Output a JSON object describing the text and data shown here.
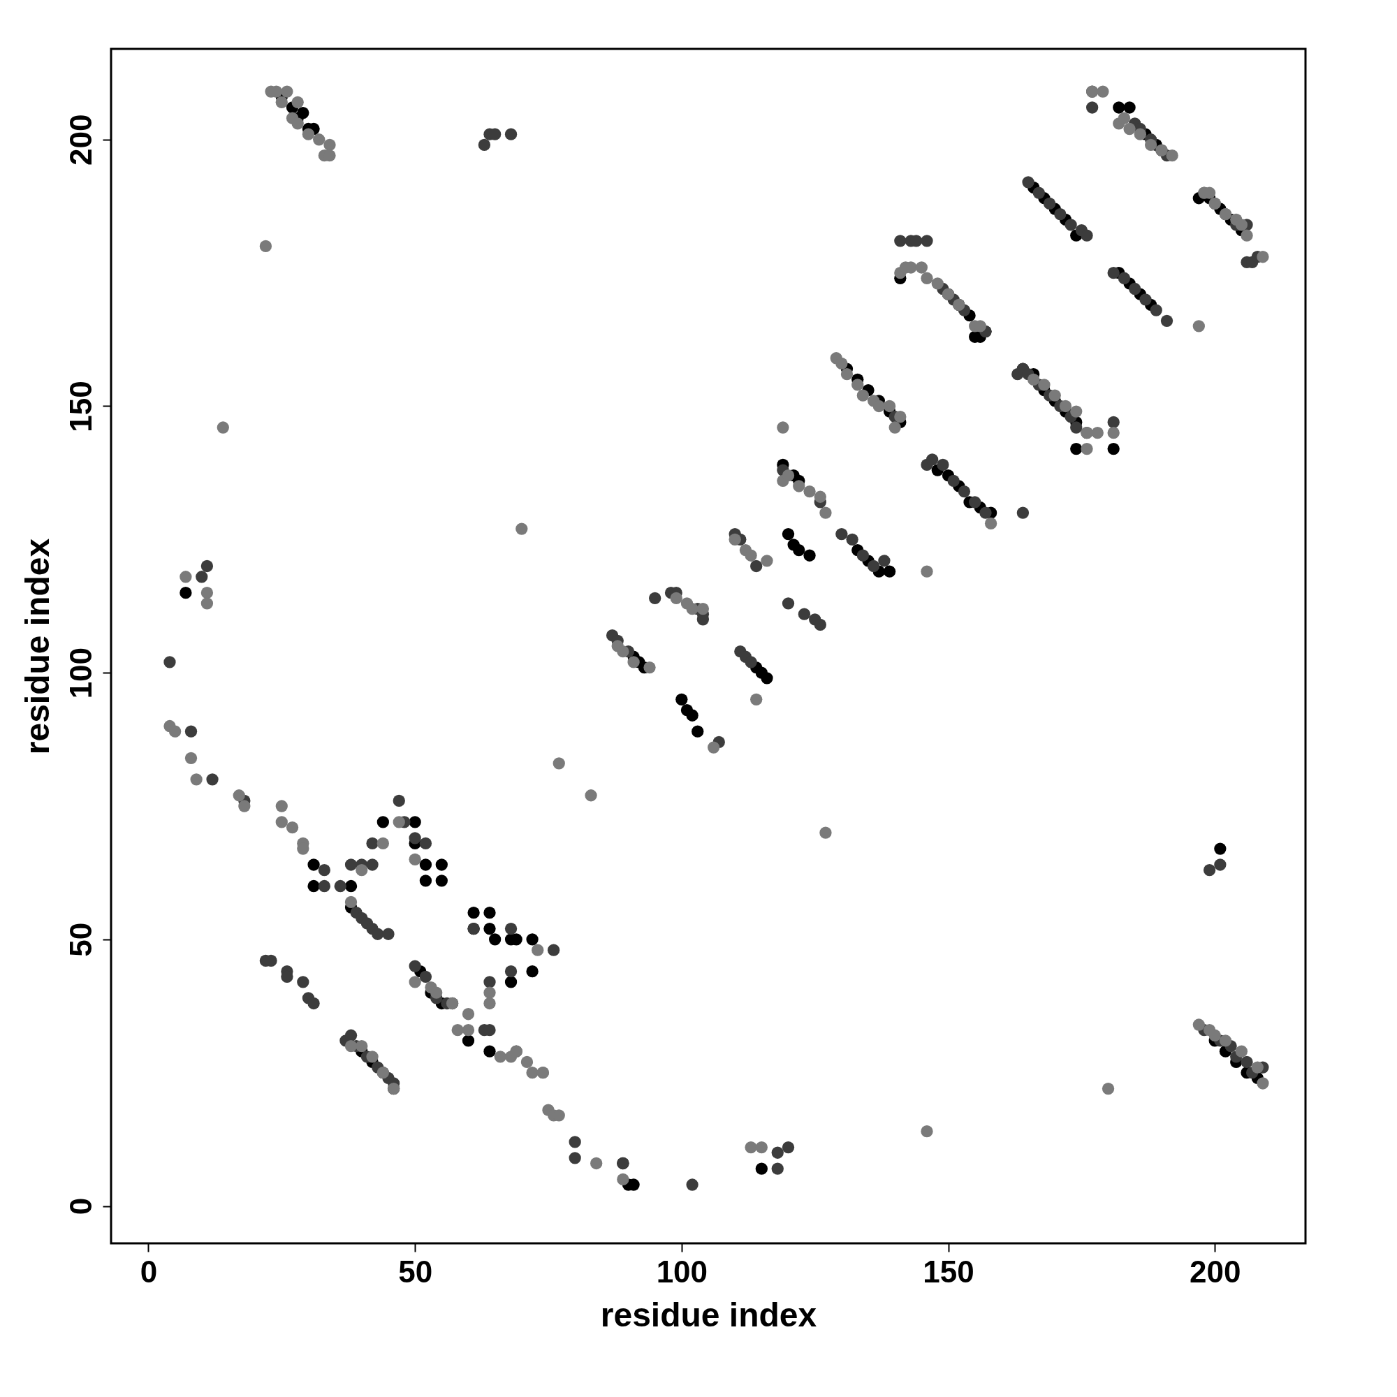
{
  "chart_data": {
    "type": "scatter",
    "xlabel": "residue index",
    "ylabel": "residue index",
    "xlim": [
      -7,
      217
    ],
    "ylim": [
      -7,
      217
    ],
    "xticks": [
      0,
      50,
      100,
      150,
      200
    ],
    "yticks": [
      0,
      50,
      100,
      150,
      200
    ],
    "grid": false,
    "marker": "circle",
    "series": [
      {
        "color": "#000000",
        "x": [
          7,
          31,
          31,
          38,
          38,
          44,
          50,
          50,
          52,
          52,
          55,
          55,
          61,
          61,
          64,
          64,
          65,
          68,
          69,
          72,
          72,
          68,
          60,
          64,
          90,
          91,
          115,
          141,
          174,
          181,
          182,
          201,
          25,
          27,
          29,
          31,
          28,
          30,
          40,
          42,
          44,
          46,
          51,
          53,
          55,
          89,
          91,
          92,
          93,
          100,
          101,
          102,
          103,
          114,
          115,
          116,
          120,
          121,
          122,
          124,
          119,
          121,
          122,
          133,
          135,
          137,
          139,
          131,
          133,
          135,
          137,
          139,
          141,
          148,
          150,
          152,
          154,
          155,
          156,
          157,
          150,
          152,
          154,
          156,
          158,
          164,
          166,
          168,
          170,
          172,
          174,
          166,
          168,
          170,
          172,
          174,
          184,
          187,
          189,
          190,
          182,
          184,
          186,
          188,
          197,
          199,
          201,
          203,
          205,
          200,
          202,
          204,
          206,
          208
        ],
        "values": [
          115,
          64,
          60,
          60,
          56,
          72,
          72,
          68,
          64,
          61,
          64,
          61,
          55,
          52,
          55,
          52,
          50,
          50,
          50,
          50,
          44,
          42,
          31,
          29,
          4,
          4,
          7,
          174,
          142,
          142,
          206,
          67,
          208,
          206,
          205,
          202,
          204,
          202,
          29,
          27,
          25,
          22,
          44,
          40,
          38,
          8,
          103,
          102,
          101,
          95,
          93,
          92,
          89,
          101,
          100,
          99,
          126,
          124,
          123,
          122,
          139,
          137,
          136,
          123,
          121,
          119,
          119,
          157,
          155,
          153,
          151,
          149,
          147,
          138,
          137,
          135,
          132,
          163,
          131,
          164,
          171,
          169,
          167,
          163,
          130,
          157,
          156,
          153,
          151,
          149,
          147,
          191,
          189,
          187,
          185,
          182,
          206,
          201,
          199,
          198,
          175,
          173,
          171,
          169,
          189,
          189,
          187,
          185,
          183,
          31,
          29,
          27,
          25,
          24
        ]
      },
      {
        "color": "#3c3c3c",
        "x": [
          4,
          8,
          12,
          10,
          11,
          18,
          33,
          33,
          36,
          38,
          40,
          42,
          42,
          39,
          40,
          41,
          42,
          43,
          45,
          47,
          48,
          50,
          52,
          22,
          23,
          26,
          30,
          31,
          26,
          29,
          37,
          38,
          39,
          41,
          43,
          45,
          46,
          50,
          52,
          54,
          56,
          57,
          63,
          64,
          65,
          68,
          63,
          64,
          69,
          80,
          80,
          89,
          102,
          118,
          118,
          120,
          61,
          64,
          68,
          76,
          68,
          87,
          88,
          90,
          95,
          98,
          99,
          103,
          104,
          104,
          107,
          110,
          111,
          112,
          113,
          111,
          114,
          119,
          120,
          123,
          125,
          126,
          126,
          130,
          132,
          134,
          136,
          138,
          140,
          141,
          143,
          144,
          146,
          149,
          151,
          153,
          157,
          146,
          147,
          149,
          151,
          153,
          155,
          157,
          163,
          164,
          165,
          167,
          169,
          171,
          173,
          174,
          176,
          181,
          164,
          165,
          167,
          169,
          171,
          173,
          175,
          176,
          177,
          177,
          185,
          186,
          188,
          191,
          181,
          183,
          185,
          187,
          189,
          191,
          198,
          200,
          202,
          204,
          206,
          206,
          207,
          208,
          199,
          201,
          198,
          201,
          203,
          204,
          206,
          207,
          209
        ],
        "values": [
          102,
          89,
          80,
          118,
          120,
          76,
          63,
          60,
          60,
          64,
          64,
          64,
          68,
          55,
          54,
          53,
          52,
          51,
          51,
          76,
          72,
          69,
          68,
          46,
          46,
          44,
          39,
          38,
          43,
          42,
          31,
          32,
          30,
          28,
          26,
          24,
          23,
          45,
          43,
          39,
          38,
          38,
          199,
          201,
          201,
          201,
          33,
          33,
          29,
          12,
          9,
          8,
          4,
          10,
          7,
          11,
          52,
          42,
          52,
          48,
          44,
          107,
          106,
          104,
          114,
          115,
          115,
          112,
          111,
          110,
          87,
          126,
          104,
          103,
          102,
          125,
          120,
          138,
          113,
          111,
          110,
          109,
          132,
          126,
          125,
          122,
          120,
          121,
          148,
          181,
          181,
          181,
          181,
          172,
          170,
          168,
          164,
          139,
          140,
          139,
          136,
          134,
          132,
          130,
          156,
          157,
          156,
          154,
          152,
          150,
          148,
          146,
          145,
          147,
          130,
          192,
          190,
          188,
          186,
          184,
          183,
          182,
          209,
          206,
          203,
          202,
          200,
          197,
          175,
          174,
          172,
          170,
          168,
          166,
          190,
          188,
          186,
          184,
          184,
          177,
          177,
          178,
          63,
          64,
          33,
          31,
          30,
          28,
          27,
          25,
          26
        ]
      },
      {
        "color": "#7a7a7a",
        "x": [
          22,
          14,
          70,
          4,
          5,
          8,
          9,
          17,
          18,
          11,
          11,
          7,
          25,
          25,
          27,
          29,
          29,
          38,
          40,
          44,
          24,
          26,
          28,
          32,
          33,
          34,
          34,
          23,
          25,
          27,
          28,
          30,
          38,
          40,
          42,
          44,
          46,
          47,
          50,
          53,
          54,
          57,
          58,
          60,
          60,
          66,
          68,
          69,
          71,
          72,
          74,
          74,
          75,
          76,
          77,
          84,
          89,
          113,
          115,
          77,
          83,
          127,
          146,
          146,
          180,
          119,
          181,
          176,
          64,
          64,
          73,
          50,
          88,
          89,
          91,
          94,
          99,
          101,
          102,
          104,
          106,
          110,
          112,
          113,
          116,
          114,
          119,
          120,
          122,
          124,
          126,
          127,
          129,
          130,
          131,
          133,
          134,
          136,
          137,
          139,
          140,
          141,
          141,
          142,
          143,
          145,
          146,
          148,
          150,
          152,
          155,
          156,
          158,
          166,
          168,
          170,
          172,
          174,
          176,
          178,
          177,
          179,
          182,
          183,
          184,
          186,
          188,
          190,
          192,
          197,
          198,
          199,
          200,
          202,
          204,
          205,
          206,
          209,
          197,
          199,
          200,
          202,
          205,
          208,
          209
        ],
        "values": [
          180,
          146,
          127,
          90,
          89,
          84,
          80,
          77,
          75,
          115,
          113,
          118,
          75,
          72,
          71,
          68,
          67,
          57,
          63,
          68,
          209,
          209,
          207,
          200,
          197,
          199,
          197,
          209,
          207,
          204,
          203,
          201,
          30,
          30,
          28,
          25,
          22,
          72,
          65,
          41,
          40,
          38,
          33,
          36,
          33,
          28,
          28,
          29,
          27,
          25,
          25,
          25,
          18,
          17,
          17,
          8,
          5,
          11,
          11,
          83,
          77,
          70,
          14,
          119,
          22,
          146,
          145,
          145,
          40,
          38,
          48,
          42,
          105,
          104,
          102,
          101,
          114,
          113,
          112,
          112,
          86,
          125,
          123,
          122,
          121,
          95,
          136,
          137,
          135,
          134,
          133,
          130,
          159,
          158,
          156,
          154,
          152,
          151,
          150,
          150,
          146,
          148,
          175,
          176,
          176,
          176,
          174,
          173,
          171,
          169,
          165,
          165,
          128,
          155,
          154,
          152,
          150,
          149,
          142,
          145,
          209,
          209,
          203,
          204,
          202,
          201,
          199,
          198,
          197,
          165,
          190,
          190,
          188,
          186,
          185,
          184,
          182,
          178,
          34,
          33,
          32,
          31,
          29,
          26,
          23
        ]
      }
    ]
  }
}
